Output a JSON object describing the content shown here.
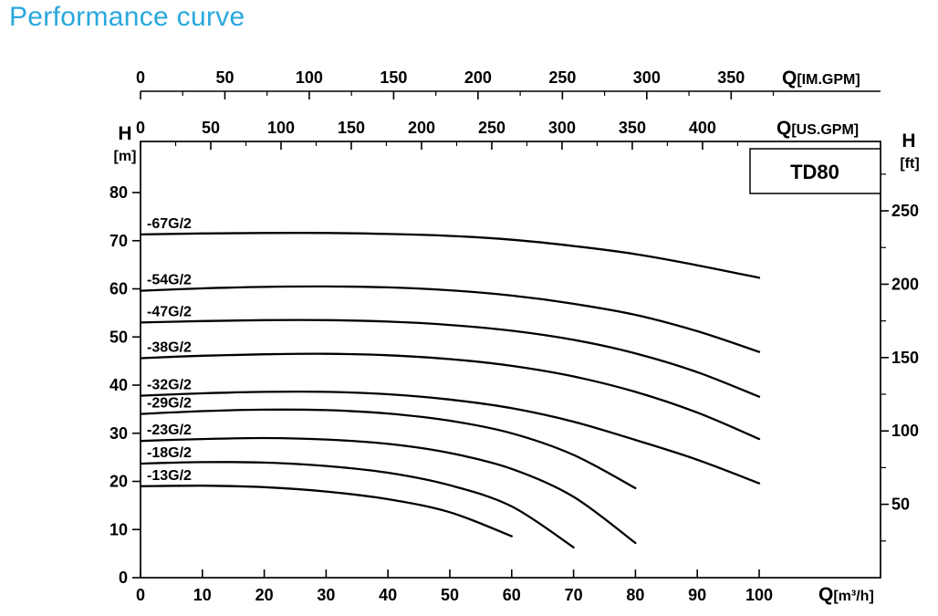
{
  "page": {
    "title": "Performance curve",
    "title_color": "#29a8dd",
    "background": "#ffffff"
  },
  "chart_data": {
    "type": "line",
    "title": "Performance curve",
    "model": "TD80",
    "line_color": "#000000",
    "axis_color": "#000000",
    "legend_position": "top-right",
    "grid": false,
    "axes": {
      "bottom": {
        "symbol": "Q",
        "unit": "[m³/h]",
        "min": 0,
        "max": 100,
        "ticks": [
          0,
          10,
          20,
          30,
          40,
          50,
          60,
          70,
          80,
          90,
          100
        ]
      },
      "top_inner": {
        "symbol": "Q",
        "unit": "[US.GPM]",
        "ticks": [
          0,
          50,
          100,
          150,
          200,
          250,
          300,
          350,
          400
        ],
        "gpm_per_m3h": 4.403,
        "minor_step": 25
      },
      "top_outer": {
        "symbol": "Q",
        "unit": "[IM.GPM]",
        "ticks": [
          0,
          50,
          100,
          150,
          200,
          250,
          300,
          350
        ],
        "gpm_per_m3h": 3.666,
        "minor_step": 25
      },
      "left": {
        "symbol": "H",
        "unit": "[m]",
        "min": 0,
        "max": 90,
        "ticks": [
          0,
          10,
          20,
          30,
          40,
          50,
          60,
          70,
          80
        ]
      },
      "right": {
        "symbol": "H",
        "unit": "[ft]",
        "ticks": [
          50,
          100,
          150,
          200,
          250
        ],
        "ft_per_m": 3.2808,
        "minor_step": 25
      }
    },
    "series": [
      {
        "name": "-67G/2",
        "points": [
          [
            0,
            71.3
          ],
          [
            10,
            71.5
          ],
          [
            20,
            71.6
          ],
          [
            30,
            71.6
          ],
          [
            40,
            71.4
          ],
          [
            50,
            71.0
          ],
          [
            60,
            70.2
          ],
          [
            70,
            68.9
          ],
          [
            80,
            67.2
          ],
          [
            90,
            64.9
          ],
          [
            100,
            62.3
          ]
        ]
      },
      {
        "name": "-54G/2",
        "points": [
          [
            0,
            59.6
          ],
          [
            10,
            60.1
          ],
          [
            20,
            60.4
          ],
          [
            30,
            60.5
          ],
          [
            40,
            60.3
          ],
          [
            50,
            59.7
          ],
          [
            60,
            58.6
          ],
          [
            70,
            56.9
          ],
          [
            80,
            54.6
          ],
          [
            90,
            51.2
          ],
          [
            100,
            46.9
          ]
        ]
      },
      {
        "name": "-47G/2",
        "points": [
          [
            0,
            53.0
          ],
          [
            10,
            53.3
          ],
          [
            20,
            53.5
          ],
          [
            30,
            53.5
          ],
          [
            40,
            53.2
          ],
          [
            50,
            52.5
          ],
          [
            60,
            51.3
          ],
          [
            70,
            49.4
          ],
          [
            80,
            46.6
          ],
          [
            90,
            42.7
          ],
          [
            100,
            37.6
          ]
        ]
      },
      {
        "name": "-38G/2",
        "points": [
          [
            0,
            45.6
          ],
          [
            10,
            46.1
          ],
          [
            20,
            46.4
          ],
          [
            30,
            46.5
          ],
          [
            40,
            46.2
          ],
          [
            50,
            45.4
          ],
          [
            60,
            44.0
          ],
          [
            70,
            41.8
          ],
          [
            80,
            38.6
          ],
          [
            90,
            34.3
          ],
          [
            100,
            28.8
          ]
        ]
      },
      {
        "name": "-32G/2",
        "points": [
          [
            0,
            37.8
          ],
          [
            10,
            38.3
          ],
          [
            20,
            38.6
          ],
          [
            30,
            38.6
          ],
          [
            40,
            38.1
          ],
          [
            50,
            37.0
          ],
          [
            60,
            35.2
          ],
          [
            70,
            32.4
          ],
          [
            80,
            28.6
          ],
          [
            90,
            24.5
          ],
          [
            100,
            19.6
          ]
        ]
      },
      {
        "name": "-29G/2",
        "points": [
          [
            0,
            34.0
          ],
          [
            10,
            34.6
          ],
          [
            20,
            34.9
          ],
          [
            30,
            34.8
          ],
          [
            40,
            34.1
          ],
          [
            50,
            32.6
          ],
          [
            60,
            30.0
          ],
          [
            70,
            25.5
          ],
          [
            80,
            18.6
          ]
        ]
      },
      {
        "name": "-23G/2",
        "points": [
          [
            0,
            28.4
          ],
          [
            10,
            28.8
          ],
          [
            20,
            29.0
          ],
          [
            30,
            28.7
          ],
          [
            40,
            27.8
          ],
          [
            50,
            25.9
          ],
          [
            60,
            22.6
          ],
          [
            70,
            16.8
          ],
          [
            80,
            7.2
          ]
        ]
      },
      {
        "name": "-18G/2",
        "points": [
          [
            0,
            23.7
          ],
          [
            10,
            24.0
          ],
          [
            20,
            23.9
          ],
          [
            30,
            23.2
          ],
          [
            40,
            21.8
          ],
          [
            50,
            19.2
          ],
          [
            60,
            14.8
          ],
          [
            70,
            6.3
          ]
        ]
      },
      {
        "name": "-13G/2",
        "points": [
          [
            0,
            19.0
          ],
          [
            10,
            19.1
          ],
          [
            20,
            18.8
          ],
          [
            30,
            17.9
          ],
          [
            40,
            16.3
          ],
          [
            50,
            13.6
          ],
          [
            60,
            8.6
          ]
        ]
      }
    ]
  }
}
